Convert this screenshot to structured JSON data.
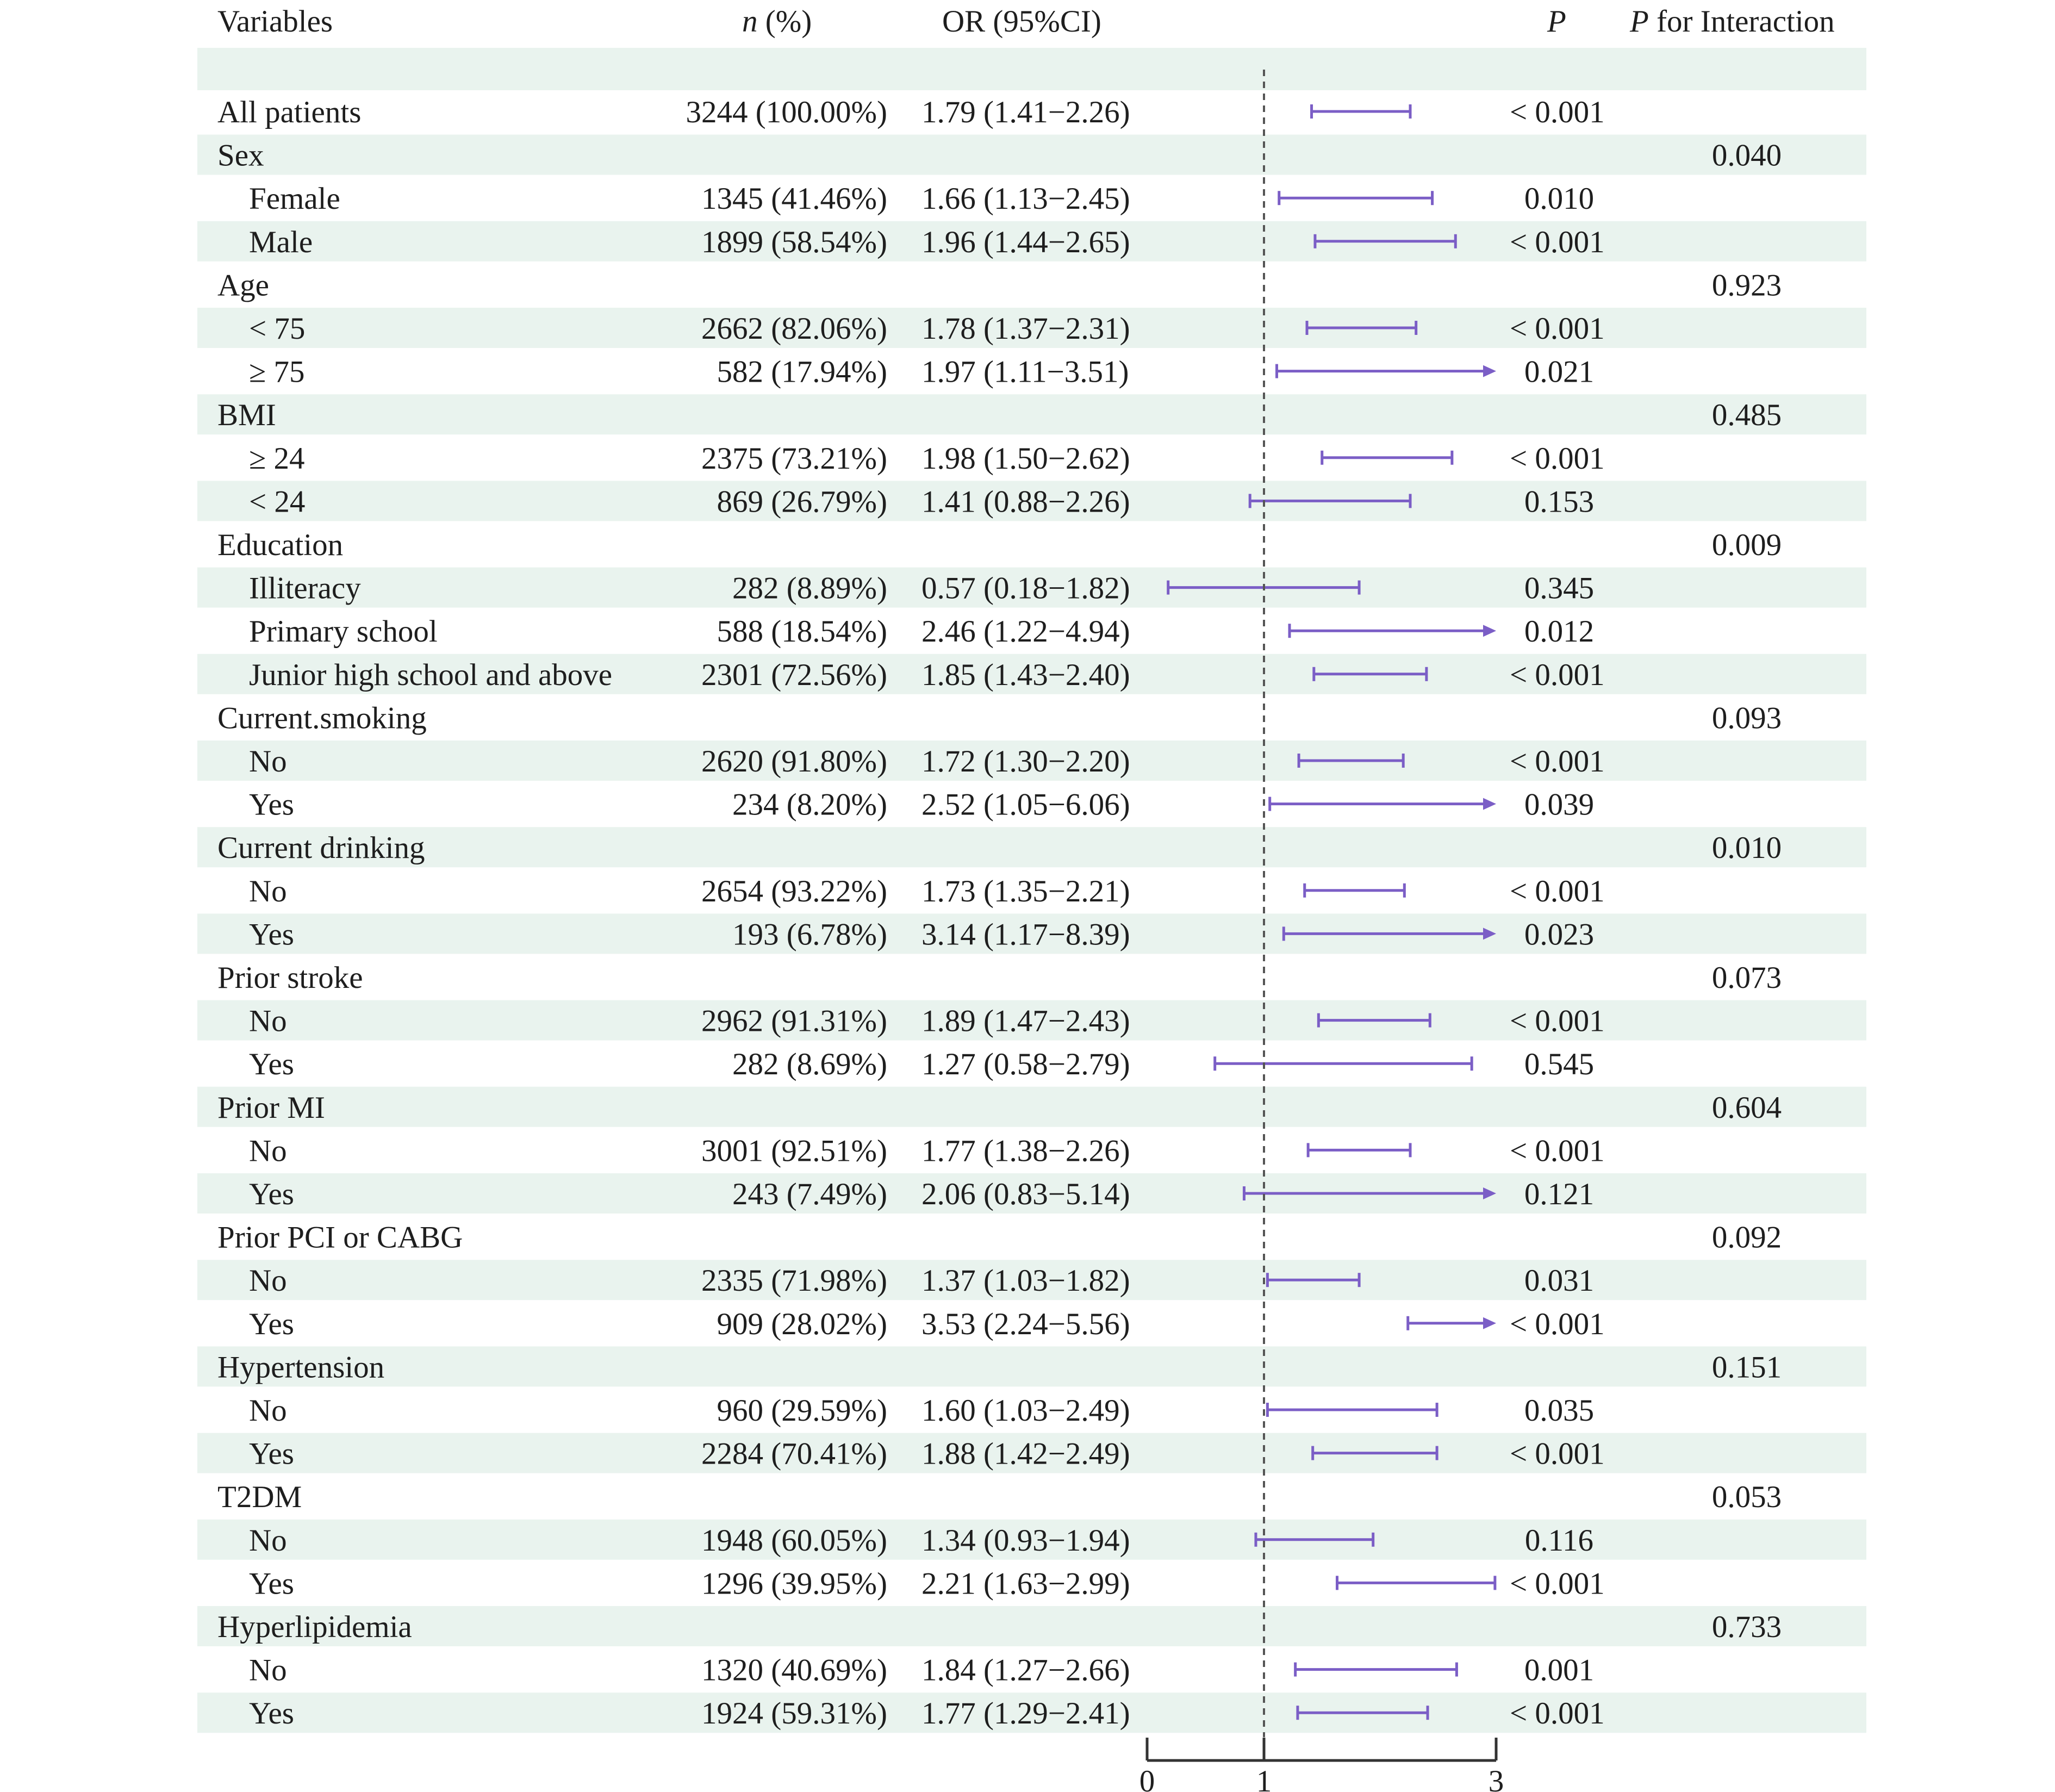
{
  "header": {
    "variables": "Variables",
    "n_italic": "n",
    "n_rest": " (%)",
    "or": "OR (95%CI)",
    "p": "P",
    "p_int_italic": "P",
    "p_int_rest": " for Interaction"
  },
  "colors": {
    "band": "#e9f3ee",
    "ci_line": "#7b5ec6",
    "text": "#1e1e1e",
    "axis": "#333333",
    "ref_line": "#555555"
  },
  "chart_data": {
    "type": "forest",
    "x_axis": {
      "ticks": [
        0,
        1,
        3
      ],
      "range": [
        0,
        3
      ],
      "reference_line": 1,
      "clip_arrow_at": 3
    },
    "rows": [
      {
        "label": "All patients",
        "level": 0,
        "n": "3244 (100.00%)",
        "or_text": "1.79 (1.41−2.26)",
        "or": 1.79,
        "lower": 1.41,
        "upper": 2.26,
        "p": "< 0.001",
        "p_interaction": ""
      },
      {
        "label": "Sex",
        "level": 0,
        "n": "",
        "or_text": "",
        "p": "",
        "p_interaction": "0.040"
      },
      {
        "label": "Female",
        "level": 1,
        "n": "1345 (41.46%)",
        "or_text": "1.66 (1.13−2.45)",
        "or": 1.66,
        "lower": 1.13,
        "upper": 2.45,
        "p": "0.010",
        "p_interaction": ""
      },
      {
        "label": "Male",
        "level": 1,
        "n": "1899 (58.54%)",
        "or_text": "1.96 (1.44−2.65)",
        "or": 1.96,
        "lower": 1.44,
        "upper": 2.65,
        "p": "< 0.001",
        "p_interaction": ""
      },
      {
        "label": "Age",
        "level": 0,
        "n": "",
        "or_text": "",
        "p": "",
        "p_interaction": "0.923"
      },
      {
        "label": "< 75",
        "level": 1,
        "n": "2662 (82.06%)",
        "or_text": "1.78 (1.37−2.31)",
        "or": 1.78,
        "lower": 1.37,
        "upper": 2.31,
        "p": "< 0.001",
        "p_interaction": ""
      },
      {
        "label": "≥ 75",
        "level": 1,
        "n": "582 (17.94%)",
        "or_text": "1.97 (1.11−3.51)",
        "or": 1.97,
        "lower": 1.11,
        "upper": 3.51,
        "p": "0.021",
        "p_interaction": ""
      },
      {
        "label": "BMI",
        "level": 0,
        "n": "",
        "or_text": "",
        "p": "",
        "p_interaction": "0.485"
      },
      {
        "label": "≥ 24",
        "level": 1,
        "n": "2375 (73.21%)",
        "or_text": "1.98 (1.50−2.62)",
        "or": 1.98,
        "lower": 1.5,
        "upper": 2.62,
        "p": "< 0.001",
        "p_interaction": ""
      },
      {
        "label": "< 24",
        "level": 1,
        "n": "869 (26.79%)",
        "or_text": "1.41 (0.88−2.26)",
        "or": 1.41,
        "lower": 0.88,
        "upper": 2.26,
        "p": "0.153",
        "p_interaction": ""
      },
      {
        "label": "Education",
        "level": 0,
        "n": "",
        "or_text": "",
        "p": "",
        "p_interaction": "0.009"
      },
      {
        "label": "Illiteracy",
        "level": 1,
        "n": "282 (8.89%)",
        "or_text": "0.57 (0.18−1.82)",
        "or": 0.57,
        "lower": 0.18,
        "upper": 1.82,
        "p": "0.345",
        "p_interaction": ""
      },
      {
        "label": "Primary school",
        "level": 1,
        "n": "588 (18.54%)",
        "or_text": "2.46 (1.22−4.94)",
        "or": 2.46,
        "lower": 1.22,
        "upper": 4.94,
        "p": "0.012",
        "p_interaction": ""
      },
      {
        "label": "Junior high school and above",
        "level": 1,
        "n": "2301 (72.56%)",
        "or_text": "1.85 (1.43−2.40)",
        "or": 1.85,
        "lower": 1.43,
        "upper": 2.4,
        "p": "< 0.001",
        "p_interaction": ""
      },
      {
        "label": "Current.smoking",
        "level": 0,
        "n": "",
        "or_text": "",
        "p": "",
        "p_interaction": "0.093"
      },
      {
        "label": "No",
        "level": 1,
        "n": "2620 (91.80%)",
        "or_text": "1.72 (1.30−2.20)",
        "or": 1.72,
        "lower": 1.3,
        "upper": 2.2,
        "p": "< 0.001",
        "p_interaction": ""
      },
      {
        "label": "Yes",
        "level": 1,
        "n": "234 (8.20%)",
        "or_text": "2.52 (1.05−6.06)",
        "or": 2.52,
        "lower": 1.05,
        "upper": 6.06,
        "p": "0.039",
        "p_interaction": ""
      },
      {
        "label": "Current drinking",
        "level": 0,
        "n": "",
        "or_text": "",
        "p": "",
        "p_interaction": "0.010"
      },
      {
        "label": "No",
        "level": 1,
        "n": "2654 (93.22%)",
        "or_text": "1.73 (1.35−2.21)",
        "or": 1.73,
        "lower": 1.35,
        "upper": 2.21,
        "p": "< 0.001",
        "p_interaction": ""
      },
      {
        "label": "Yes",
        "level": 1,
        "n": "193 (6.78%)",
        "or_text": "3.14 (1.17−8.39)",
        "or": 3.14,
        "lower": 1.17,
        "upper": 8.39,
        "p": "0.023",
        "p_interaction": ""
      },
      {
        "label": "Prior stroke",
        "level": 0,
        "n": "",
        "or_text": "",
        "p": "",
        "p_interaction": "0.073"
      },
      {
        "label": "No",
        "level": 1,
        "n": "2962 (91.31%)",
        "or_text": "1.89 (1.47−2.43)",
        "or": 1.89,
        "lower": 1.47,
        "upper": 2.43,
        "p": "< 0.001",
        "p_interaction": ""
      },
      {
        "label": "Yes",
        "level": 1,
        "n": "282 (8.69%)",
        "or_text": "1.27 (0.58−2.79)",
        "or": 1.27,
        "lower": 0.58,
        "upper": 2.79,
        "p": "0.545",
        "p_interaction": ""
      },
      {
        "label": "Prior MI",
        "level": 0,
        "n": "",
        "or_text": "",
        "p": "",
        "p_interaction": "0.604"
      },
      {
        "label": "No",
        "level": 1,
        "n": "3001 (92.51%)",
        "or_text": "1.77 (1.38−2.26)",
        "or": 1.77,
        "lower": 1.38,
        "upper": 2.26,
        "p": "< 0.001",
        "p_interaction": ""
      },
      {
        "label": "Yes",
        "level": 1,
        "n": "243 (7.49%)",
        "or_text": "2.06 (0.83−5.14)",
        "or": 2.06,
        "lower": 0.83,
        "upper": 5.14,
        "p": "0.121",
        "p_interaction": ""
      },
      {
        "label": "Prior PCI or CABG",
        "level": 0,
        "n": "",
        "or_text": "",
        "p": "",
        "p_interaction": "0.092"
      },
      {
        "label": "No",
        "level": 1,
        "n": "2335 (71.98%)",
        "or_text": "1.37 (1.03−1.82)",
        "or": 1.37,
        "lower": 1.03,
        "upper": 1.82,
        "p": "0.031",
        "p_interaction": ""
      },
      {
        "label": "Yes",
        "level": 1,
        "n": "909 (28.02%)",
        "or_text": "3.53 (2.24−5.56)",
        "or": 3.53,
        "lower": 2.24,
        "upper": 5.56,
        "p": "< 0.001",
        "p_interaction": ""
      },
      {
        "label": "Hypertension",
        "level": 0,
        "n": "",
        "or_text": "",
        "p": "",
        "p_interaction": "0.151"
      },
      {
        "label": "No",
        "level": 1,
        "n": "960 (29.59%)",
        "or_text": "1.60 (1.03−2.49)",
        "or": 1.6,
        "lower": 1.03,
        "upper": 2.49,
        "p": "0.035",
        "p_interaction": ""
      },
      {
        "label": "Yes",
        "level": 1,
        "n": "2284 (70.41%)",
        "or_text": "1.88 (1.42−2.49)",
        "or": 1.88,
        "lower": 1.42,
        "upper": 2.49,
        "p": "< 0.001",
        "p_interaction": ""
      },
      {
        "label": "T2DM",
        "level": 0,
        "n": "",
        "or_text": "",
        "p": "",
        "p_interaction": "0.053"
      },
      {
        "label": "No",
        "level": 1,
        "n": "1948 (60.05%)",
        "or_text": "1.34 (0.93−1.94)",
        "or": 1.34,
        "lower": 0.93,
        "upper": 1.94,
        "p": "0.116",
        "p_interaction": ""
      },
      {
        "label": "Yes",
        "level": 1,
        "n": "1296 (39.95%)",
        "or_text": "2.21 (1.63−2.99)",
        "or": 2.21,
        "lower": 1.63,
        "upper": 2.99,
        "p": "< 0.001",
        "p_interaction": ""
      },
      {
        "label": "Hyperlipidemia",
        "level": 0,
        "n": "",
        "or_text": "",
        "p": "",
        "p_interaction": "0.733"
      },
      {
        "label": "No",
        "level": 1,
        "n": "1320 (40.69%)",
        "or_text": "1.84 (1.27−2.66)",
        "or": 1.84,
        "lower": 1.27,
        "upper": 2.66,
        "p": "0.001",
        "p_interaction": ""
      },
      {
        "label": "Yes",
        "level": 1,
        "n": "1924 (59.31%)",
        "or_text": "1.77 (1.29−2.41)",
        "or": 1.77,
        "lower": 1.29,
        "upper": 2.41,
        "p": "< 0.001",
        "p_interaction": ""
      }
    ]
  }
}
